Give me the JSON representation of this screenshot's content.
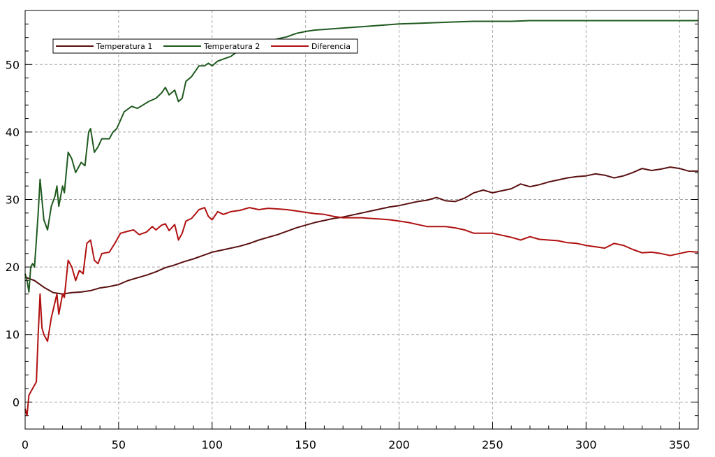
{
  "chart_data": {
    "type": "line",
    "title": "",
    "xlabel": "",
    "ylabel": "",
    "xlim": [
      0,
      360
    ],
    "ylim": [
      -4,
      58
    ],
    "x_ticks": [
      0,
      50,
      100,
      150,
      200,
      250,
      300,
      350
    ],
    "y_ticks": [
      0,
      10,
      20,
      30,
      40,
      50
    ],
    "grid": true,
    "legend": "top-left, horizontal",
    "series": [
      {
        "name": "Temperatura 1",
        "color": "#5a1010",
        "points": [
          [
            0,
            18.5
          ],
          [
            5,
            18
          ],
          [
            10,
            17
          ],
          [
            15,
            16.2
          ],
          [
            20,
            16
          ],
          [
            25,
            16.2
          ],
          [
            30,
            16.3
          ],
          [
            35,
            16.5
          ],
          [
            40,
            16.9
          ],
          [
            45,
            17.1
          ],
          [
            50,
            17.4
          ],
          [
            55,
            18
          ],
          [
            60,
            18.4
          ],
          [
            65,
            18.8
          ],
          [
            70,
            19.3
          ],
          [
            75,
            19.9
          ],
          [
            80,
            20.3
          ],
          [
            85,
            20.8
          ],
          [
            90,
            21.2
          ],
          [
            95,
            21.7
          ],
          [
            100,
            22.2
          ],
          [
            105,
            22.5
          ],
          [
            110,
            22.8
          ],
          [
            115,
            23.1
          ],
          [
            120,
            23.5
          ],
          [
            125,
            24
          ],
          [
            130,
            24.4
          ],
          [
            135,
            24.8
          ],
          [
            140,
            25.3
          ],
          [
            145,
            25.8
          ],
          [
            150,
            26.2
          ],
          [
            155,
            26.6
          ],
          [
            160,
            26.9
          ],
          [
            165,
            27.2
          ],
          [
            170,
            27.4
          ],
          [
            175,
            27.7
          ],
          [
            180,
            28
          ],
          [
            185,
            28.3
          ],
          [
            190,
            28.6
          ],
          [
            195,
            28.9
          ],
          [
            200,
            29.1
          ],
          [
            205,
            29.4
          ],
          [
            210,
            29.7
          ],
          [
            215,
            29.9
          ],
          [
            220,
            30.3
          ],
          [
            225,
            29.8
          ],
          [
            230,
            29.7
          ],
          [
            235,
            30.2
          ],
          [
            240,
            31
          ],
          [
            245,
            31.4
          ],
          [
            250,
            31
          ],
          [
            255,
            31.3
          ],
          [
            260,
            31.6
          ],
          [
            265,
            32.3
          ],
          [
            270,
            31.9
          ],
          [
            275,
            32.2
          ],
          [
            280,
            32.6
          ],
          [
            285,
            32.9
          ],
          [
            290,
            33.2
          ],
          [
            295,
            33.4
          ],
          [
            300,
            33.5
          ],
          [
            305,
            33.8
          ],
          [
            310,
            33.6
          ],
          [
            315,
            33.2
          ],
          [
            320,
            33.5
          ],
          [
            325,
            34
          ],
          [
            330,
            34.6
          ],
          [
            335,
            34.3
          ],
          [
            340,
            34.5
          ],
          [
            345,
            34.8
          ],
          [
            350,
            34.6
          ],
          [
            355,
            34.2
          ],
          [
            360,
            34.2
          ]
        ]
      },
      {
        "name": "Temperatura 2",
        "color": "#1f5a1f",
        "points": [
          [
            0,
            19
          ],
          [
            1,
            18
          ],
          [
            2,
            16.3
          ],
          [
            3,
            20
          ],
          [
            4,
            20.5
          ],
          [
            5,
            20
          ],
          [
            6,
            24
          ],
          [
            7,
            28
          ],
          [
            8,
            33
          ],
          [
            9,
            30
          ],
          [
            10,
            27
          ],
          [
            12,
            25.5
          ],
          [
            14,
            29
          ],
          [
            16,
            30.5
          ],
          [
            17,
            32
          ],
          [
            18,
            29
          ],
          [
            20,
            32
          ],
          [
            21,
            31
          ],
          [
            23,
            37
          ],
          [
            25,
            36
          ],
          [
            27,
            34
          ],
          [
            30,
            35.5
          ],
          [
            32,
            35
          ],
          [
            34,
            40
          ],
          [
            35,
            40.5
          ],
          [
            37,
            37
          ],
          [
            39,
            37.8
          ],
          [
            41,
            39
          ],
          [
            45,
            39
          ],
          [
            47,
            40
          ],
          [
            49,
            40.5
          ],
          [
            53,
            43
          ],
          [
            57,
            43.8
          ],
          [
            60,
            43.5
          ],
          [
            63,
            44
          ],
          [
            66,
            44.5
          ],
          [
            70,
            45
          ],
          [
            73,
            45.8
          ],
          [
            75,
            46.6
          ],
          [
            77,
            45.5
          ],
          [
            80,
            46.2
          ],
          [
            82,
            44.5
          ],
          [
            84,
            45
          ],
          [
            86,
            47.5
          ],
          [
            89,
            48.2
          ],
          [
            93,
            49.8
          ],
          [
            96,
            49.8
          ],
          [
            98,
            50.2
          ],
          [
            100,
            49.8
          ],
          [
            103,
            50.5
          ],
          [
            106,
            50.8
          ],
          [
            110,
            51.2
          ],
          [
            115,
            52.2
          ],
          [
            120,
            52.6
          ],
          [
            125,
            53
          ],
          [
            130,
            53.4
          ],
          [
            135,
            53.8
          ],
          [
            140,
            54.1
          ],
          [
            145,
            54.6
          ],
          [
            150,
            54.9
          ],
          [
            155,
            55.1
          ],
          [
            160,
            55.2
          ],
          [
            170,
            55.4
          ],
          [
            180,
            55.6
          ],
          [
            190,
            55.8
          ],
          [
            200,
            56
          ],
          [
            210,
            56.1
          ],
          [
            220,
            56.2
          ],
          [
            230,
            56.3
          ],
          [
            240,
            56.4
          ],
          [
            250,
            56.4
          ],
          [
            260,
            56.4
          ],
          [
            270,
            56.5
          ],
          [
            280,
            56.5
          ],
          [
            290,
            56.5
          ],
          [
            300,
            56.5
          ],
          [
            320,
            56.5
          ],
          [
            340,
            56.5
          ],
          [
            360,
            56.5
          ]
        ]
      },
      {
        "name": "Diferencia",
        "color": "#b01010",
        "points": [
          [
            0,
            -1
          ],
          [
            1,
            -2
          ],
          [
            2,
            1
          ],
          [
            4,
            2
          ],
          [
            6,
            3
          ],
          [
            7,
            10
          ],
          [
            8,
            16
          ],
          [
            9,
            11
          ],
          [
            10,
            10
          ],
          [
            12,
            9
          ],
          [
            14,
            12.5
          ],
          [
            17,
            16
          ],
          [
            18,
            13
          ],
          [
            20,
            16
          ],
          [
            21,
            15.5
          ],
          [
            23,
            21
          ],
          [
            25,
            20
          ],
          [
            27,
            18
          ],
          [
            29,
            19.5
          ],
          [
            31,
            19
          ],
          [
            33,
            23.5
          ],
          [
            35,
            24
          ],
          [
            37,
            21
          ],
          [
            39,
            20.5
          ],
          [
            41,
            22
          ],
          [
            45,
            22.2
          ],
          [
            48,
            23.5
          ],
          [
            51,
            25
          ],
          [
            55,
            25.3
          ],
          [
            58,
            25.5
          ],
          [
            61,
            24.8
          ],
          [
            65,
            25.2
          ],
          [
            68,
            26
          ],
          [
            70,
            25.5
          ],
          [
            73,
            26.2
          ],
          [
            75,
            26.4
          ],
          [
            77,
            25.4
          ],
          [
            80,
            26.3
          ],
          [
            82,
            24
          ],
          [
            84,
            25
          ],
          [
            86,
            26.8
          ],
          [
            89,
            27.2
          ],
          [
            93,
            28.5
          ],
          [
            96,
            28.8
          ],
          [
            98,
            27.5
          ],
          [
            100,
            27
          ],
          [
            103,
            28.2
          ],
          [
            106,
            27.8
          ],
          [
            110,
            28.2
          ],
          [
            115,
            28.4
          ],
          [
            120,
            28.8
          ],
          [
            125,
            28.5
          ],
          [
            130,
            28.7
          ],
          [
            135,
            28.6
          ],
          [
            140,
            28.5
          ],
          [
            145,
            28.3
          ],
          [
            150,
            28.1
          ],
          [
            155,
            27.9
          ],
          [
            160,
            27.8
          ],
          [
            165,
            27.5
          ],
          [
            170,
            27.3
          ],
          [
            175,
            27.3
          ],
          [
            180,
            27.3
          ],
          [
            185,
            27.2
          ],
          [
            190,
            27.1
          ],
          [
            195,
            27
          ],
          [
            200,
            26.8
          ],
          [
            205,
            26.6
          ],
          [
            210,
            26.3
          ],
          [
            215,
            26
          ],
          [
            220,
            26
          ],
          [
            225,
            26
          ],
          [
            230,
            25.8
          ],
          [
            235,
            25.5
          ],
          [
            240,
            25
          ],
          [
            245,
            25
          ],
          [
            250,
            25
          ],
          [
            255,
            24.7
          ],
          [
            260,
            24.4
          ],
          [
            265,
            24
          ],
          [
            270,
            24.5
          ],
          [
            275,
            24.1
          ],
          [
            280,
            24
          ],
          [
            285,
            23.9
          ],
          [
            290,
            23.6
          ],
          [
            295,
            23.5
          ],
          [
            300,
            23.2
          ],
          [
            305,
            23
          ],
          [
            310,
            22.8
          ],
          [
            315,
            23.5
          ],
          [
            320,
            23.2
          ],
          [
            325,
            22.6
          ],
          [
            330,
            22.1
          ],
          [
            335,
            22.2
          ],
          [
            340,
            22
          ],
          [
            345,
            21.7
          ],
          [
            350,
            22
          ],
          [
            355,
            22.3
          ],
          [
            360,
            22.2
          ]
        ]
      }
    ]
  }
}
